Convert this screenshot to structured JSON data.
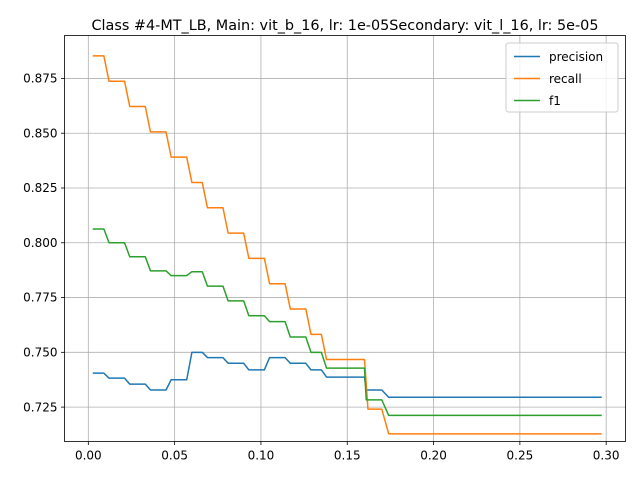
{
  "chart_data": {
    "type": "line",
    "title": "Class #4-MT_LB, Main: vit_b_16, lr: 1e-05Secondary: vit_l_16, lr: 5e-05",
    "xlabel": "",
    "ylabel": "",
    "xlim": [
      -0.0138,
      0.3112
    ],
    "ylim": [
      0.7093,
      0.8946
    ],
    "xticks": [
      0.0,
      0.05,
      0.1,
      0.15,
      0.2,
      0.25,
      0.3
    ],
    "xtick_labels": [
      "0.00",
      "0.05",
      "0.10",
      "0.15",
      "0.20",
      "0.25",
      "0.30"
    ],
    "yticks": [
      0.725,
      0.75,
      0.775,
      0.8,
      0.825,
      0.85,
      0.875
    ],
    "ytick_labels": [
      "0.725",
      "0.750",
      "0.775",
      "0.800",
      "0.825",
      "0.850",
      "0.875"
    ],
    "grid": true,
    "legend_position": "top-right",
    "series": [
      {
        "name": "precision",
        "color": "#1f77b4",
        "points": [
          [
            0.003,
            0.7405
          ],
          [
            0.009,
            0.7405
          ],
          [
            0.012,
            0.7382
          ],
          [
            0.021,
            0.7382
          ],
          [
            0.024,
            0.7355
          ],
          [
            0.033,
            0.7355
          ],
          [
            0.036,
            0.7328
          ],
          [
            0.045,
            0.7328
          ],
          [
            0.048,
            0.7375
          ],
          [
            0.057,
            0.7375
          ],
          [
            0.06,
            0.75
          ],
          [
            0.066,
            0.75
          ],
          [
            0.069,
            0.7476
          ],
          [
            0.078,
            0.7476
          ],
          [
            0.081,
            0.745
          ],
          [
            0.09,
            0.745
          ],
          [
            0.093,
            0.742
          ],
          [
            0.102,
            0.742
          ],
          [
            0.105,
            0.7476
          ],
          [
            0.114,
            0.7476
          ],
          [
            0.117,
            0.745
          ],
          [
            0.126,
            0.745
          ],
          [
            0.129,
            0.742
          ],
          [
            0.135,
            0.742
          ],
          [
            0.138,
            0.7387
          ],
          [
            0.16,
            0.7387
          ],
          [
            0.161,
            0.7328
          ],
          [
            0.17,
            0.7328
          ],
          [
            0.174,
            0.7295
          ],
          [
            0.297,
            0.7295
          ]
        ]
      },
      {
        "name": "recall",
        "color": "#ff7f0e",
        "points": [
          [
            0.003,
            0.8853
          ],
          [
            0.009,
            0.8853
          ],
          [
            0.012,
            0.8737
          ],
          [
            0.021,
            0.8737
          ],
          [
            0.024,
            0.8622
          ],
          [
            0.033,
            0.8622
          ],
          [
            0.036,
            0.8506
          ],
          [
            0.045,
            0.8506
          ],
          [
            0.048,
            0.8391
          ],
          [
            0.057,
            0.8391
          ],
          [
            0.06,
            0.8275
          ],
          [
            0.066,
            0.8275
          ],
          [
            0.069,
            0.816
          ],
          [
            0.078,
            0.816
          ],
          [
            0.081,
            0.8044
          ],
          [
            0.09,
            0.8044
          ],
          [
            0.093,
            0.7929
          ],
          [
            0.102,
            0.7929
          ],
          [
            0.105,
            0.7813
          ],
          [
            0.114,
            0.7813
          ],
          [
            0.117,
            0.7698
          ],
          [
            0.126,
            0.7698
          ],
          [
            0.129,
            0.7582
          ],
          [
            0.135,
            0.7582
          ],
          [
            0.138,
            0.7467
          ],
          [
            0.16,
            0.7467
          ],
          [
            0.162,
            0.7241
          ],
          [
            0.17,
            0.7241
          ],
          [
            0.174,
            0.7128
          ],
          [
            0.297,
            0.7128
          ]
        ]
      },
      {
        "name": "f1",
        "color": "#2ca02c",
        "points": [
          [
            0.003,
            0.8063
          ],
          [
            0.009,
            0.8063
          ],
          [
            0.012,
            0.8
          ],
          [
            0.021,
            0.8
          ],
          [
            0.024,
            0.7936
          ],
          [
            0.033,
            0.7936
          ],
          [
            0.036,
            0.7872
          ],
          [
            0.045,
            0.7872
          ],
          [
            0.048,
            0.785
          ],
          [
            0.057,
            0.785
          ],
          [
            0.06,
            0.7868
          ],
          [
            0.066,
            0.7868
          ],
          [
            0.069,
            0.7802
          ],
          [
            0.078,
            0.7802
          ],
          [
            0.081,
            0.7735
          ],
          [
            0.09,
            0.7735
          ],
          [
            0.093,
            0.7667
          ],
          [
            0.102,
            0.7667
          ],
          [
            0.105,
            0.764
          ],
          [
            0.114,
            0.764
          ],
          [
            0.117,
            0.757
          ],
          [
            0.126,
            0.757
          ],
          [
            0.129,
            0.75
          ],
          [
            0.135,
            0.75
          ],
          [
            0.138,
            0.7428
          ],
          [
            0.16,
            0.7428
          ],
          [
            0.161,
            0.7283
          ],
          [
            0.17,
            0.7283
          ],
          [
            0.174,
            0.7212
          ],
          [
            0.297,
            0.7212
          ]
        ]
      }
    ]
  }
}
